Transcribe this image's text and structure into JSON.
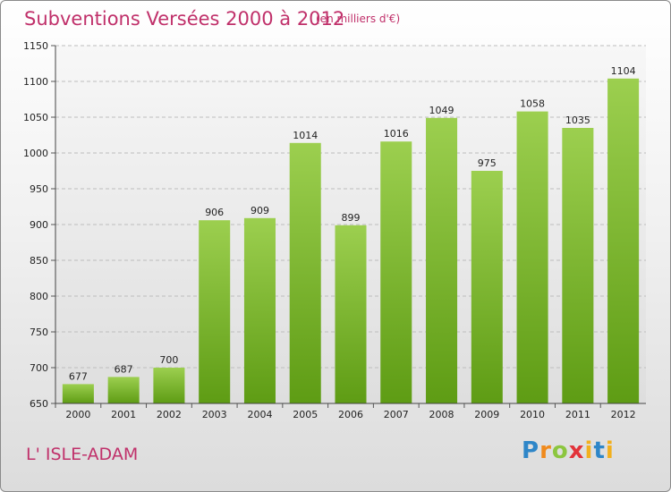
{
  "header": {
    "title": "Subventions Versées 2000 à 2012",
    "subtitle": "(en milliers d'€)"
  },
  "footer": {
    "location": "L' ISLE-ADAM",
    "logo": "Proxiti"
  },
  "colors": {
    "title": "#c0306a",
    "bar_top": "#9ccf4f",
    "bar_bottom": "#5e9c14"
  },
  "chart_data": {
    "type": "bar",
    "categories": [
      "2000",
      "2001",
      "2002",
      "2003",
      "2004",
      "2005",
      "2006",
      "2007",
      "2008",
      "2009",
      "2010",
      "2011",
      "2012"
    ],
    "values": [
      677,
      687,
      700,
      906,
      909,
      1014,
      899,
      1016,
      1049,
      975,
      1058,
      1035,
      1104
    ],
    "title": "Subventions Versées 2000 à 2012",
    "subtitle": "(en milliers d'€)",
    "ylim": [
      650,
      1150
    ],
    "yticks": [
      650,
      700,
      750,
      800,
      850,
      900,
      950,
      1000,
      1050,
      1100,
      1150
    ],
    "grid": true
  }
}
